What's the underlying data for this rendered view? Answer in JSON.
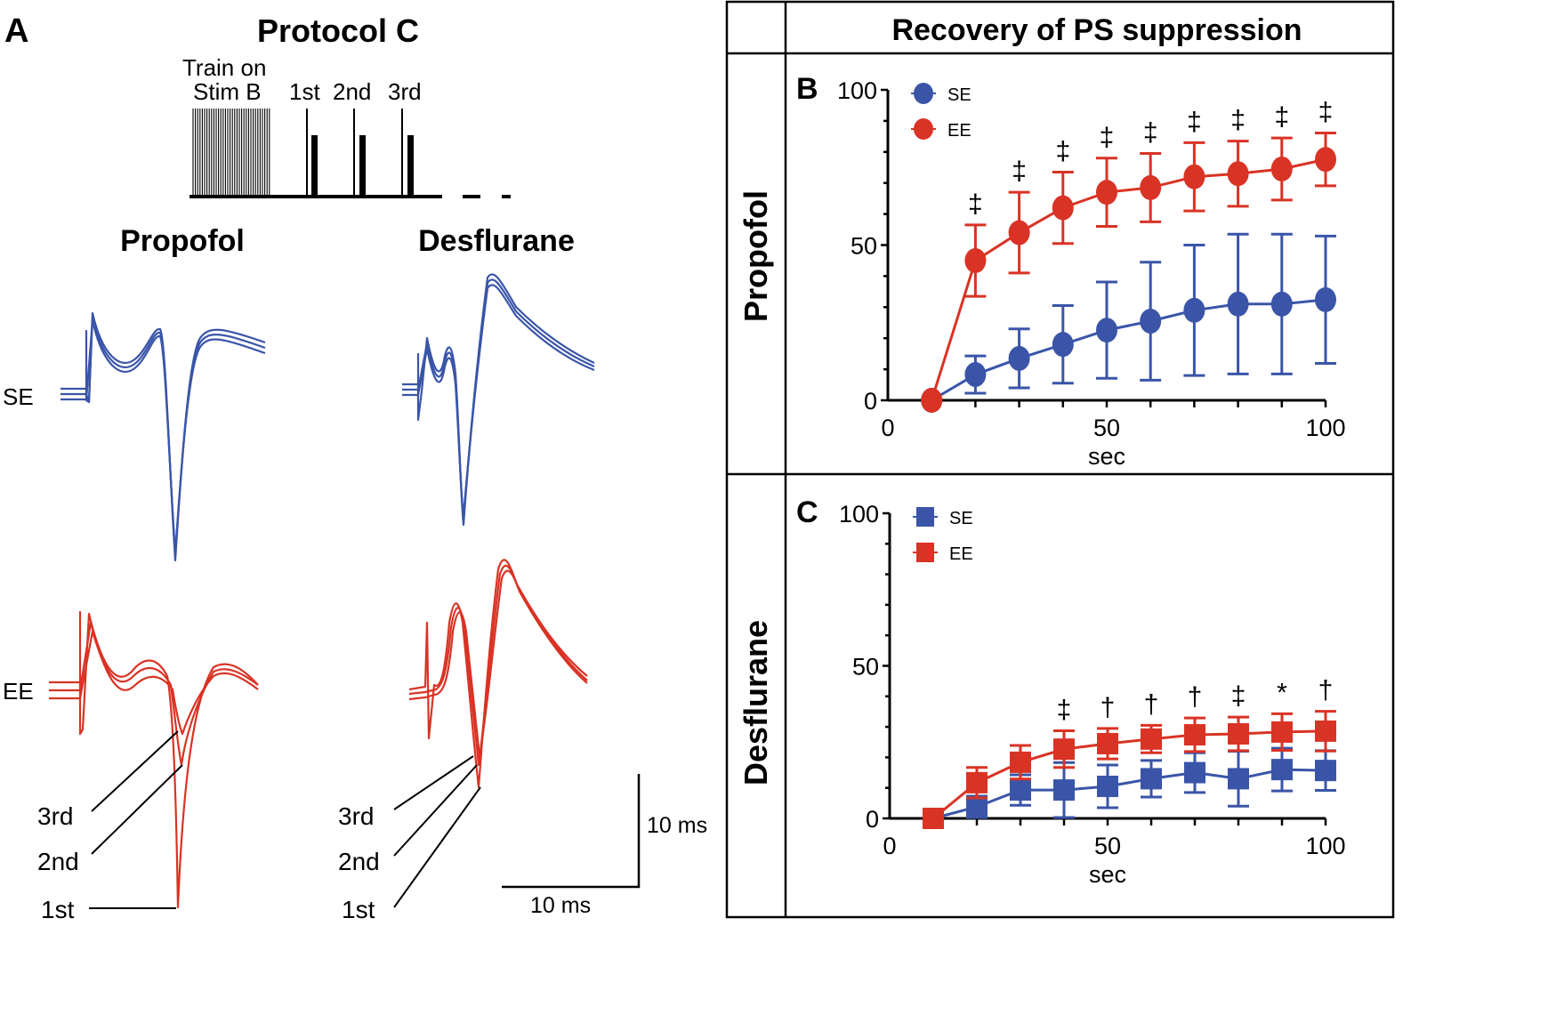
{
  "panel_a": {
    "label": "A",
    "protocol_title": "Protocol C",
    "train_label_1": "Train on",
    "train_label_2": "Stim B",
    "pulse_labels": [
      "1st",
      "2nd",
      "3rd"
    ],
    "column_titles": [
      "Propofol",
      "Desflurane"
    ],
    "row_labels": [
      "SE",
      "EE"
    ],
    "trace_pointer_labels": [
      "3rd",
      "2nd",
      "1st"
    ],
    "scale_vertical_label": "10 ms",
    "scale_horizontal_label": "10 ms",
    "colors": {
      "SE": "#3a55a8",
      "EE": "#d93325"
    }
  },
  "table": {
    "header": "Recovery of PS suppression",
    "row_titles": [
      "Propofol",
      "Desflurane"
    ]
  },
  "chart_data": [
    {
      "panel": "B",
      "type": "scatter",
      "marker": "circle",
      "xlabel": "sec",
      "ylabel": "",
      "xlim": [
        0,
        100
      ],
      "ylim": [
        0,
        100
      ],
      "xticks": [
        0,
        50,
        100
      ],
      "yticks": [
        0,
        50,
        100
      ],
      "legend": "top-left",
      "x": [
        10,
        20,
        30,
        40,
        50,
        60,
        70,
        80,
        90,
        100
      ],
      "series": [
        {
          "name": "SE",
          "color": "#3a55a8",
          "values": [
            0,
            8.3,
            13.5,
            18,
            22.6,
            25.5,
            29,
            31,
            31,
            32.4
          ],
          "errors": [
            0,
            6,
            9.5,
            12.5,
            15.5,
            19,
            21,
            22.5,
            22.5,
            20.5
          ]
        },
        {
          "name": "EE",
          "color": "#d93325",
          "values": [
            0,
            45,
            54,
            62,
            67,
            68.5,
            72,
            73,
            74.5,
            77.6
          ],
          "errors": [
            0,
            11.5,
            13,
            11.5,
            11,
            11,
            11,
            10.5,
            10,
            8.5
          ]
        }
      ],
      "significance": [
        "",
        "‡",
        "‡",
        "‡",
        "‡",
        "‡",
        "‡",
        "‡",
        "‡",
        "‡"
      ]
    },
    {
      "panel": "C",
      "type": "scatter",
      "marker": "square",
      "xlabel": "sec",
      "ylabel": "",
      "xlim": [
        0,
        100
      ],
      "ylim": [
        0,
        100
      ],
      "xticks": [
        0,
        50,
        100
      ],
      "yticks": [
        0,
        50,
        100
      ],
      "legend": "top-left",
      "x": [
        10,
        20,
        30,
        40,
        50,
        60,
        70,
        80,
        90,
        100
      ],
      "series": [
        {
          "name": "SE",
          "color": "#3a55a8",
          "values": [
            0,
            3.8,
            9.3,
            9.3,
            10.5,
            13,
            15,
            13,
            16,
            15.7
          ],
          "errors": [
            0,
            3.5,
            5,
            9,
            7,
            6,
            6.5,
            9,
            7,
            6.5
          ]
        },
        {
          "name": "EE",
          "color": "#d93325",
          "values": [
            0,
            11.7,
            18.4,
            22.7,
            24.5,
            26,
            27.4,
            27.7,
            28.3,
            28.6
          ],
          "errors": [
            0,
            5,
            5.5,
            6,
            5,
            4.5,
            5.5,
            5.5,
            6,
            6.5
          ]
        }
      ],
      "significance": [
        "",
        "",
        "",
        "‡",
        "†",
        "†",
        "†",
        "‡",
        "*",
        "†"
      ]
    }
  ]
}
